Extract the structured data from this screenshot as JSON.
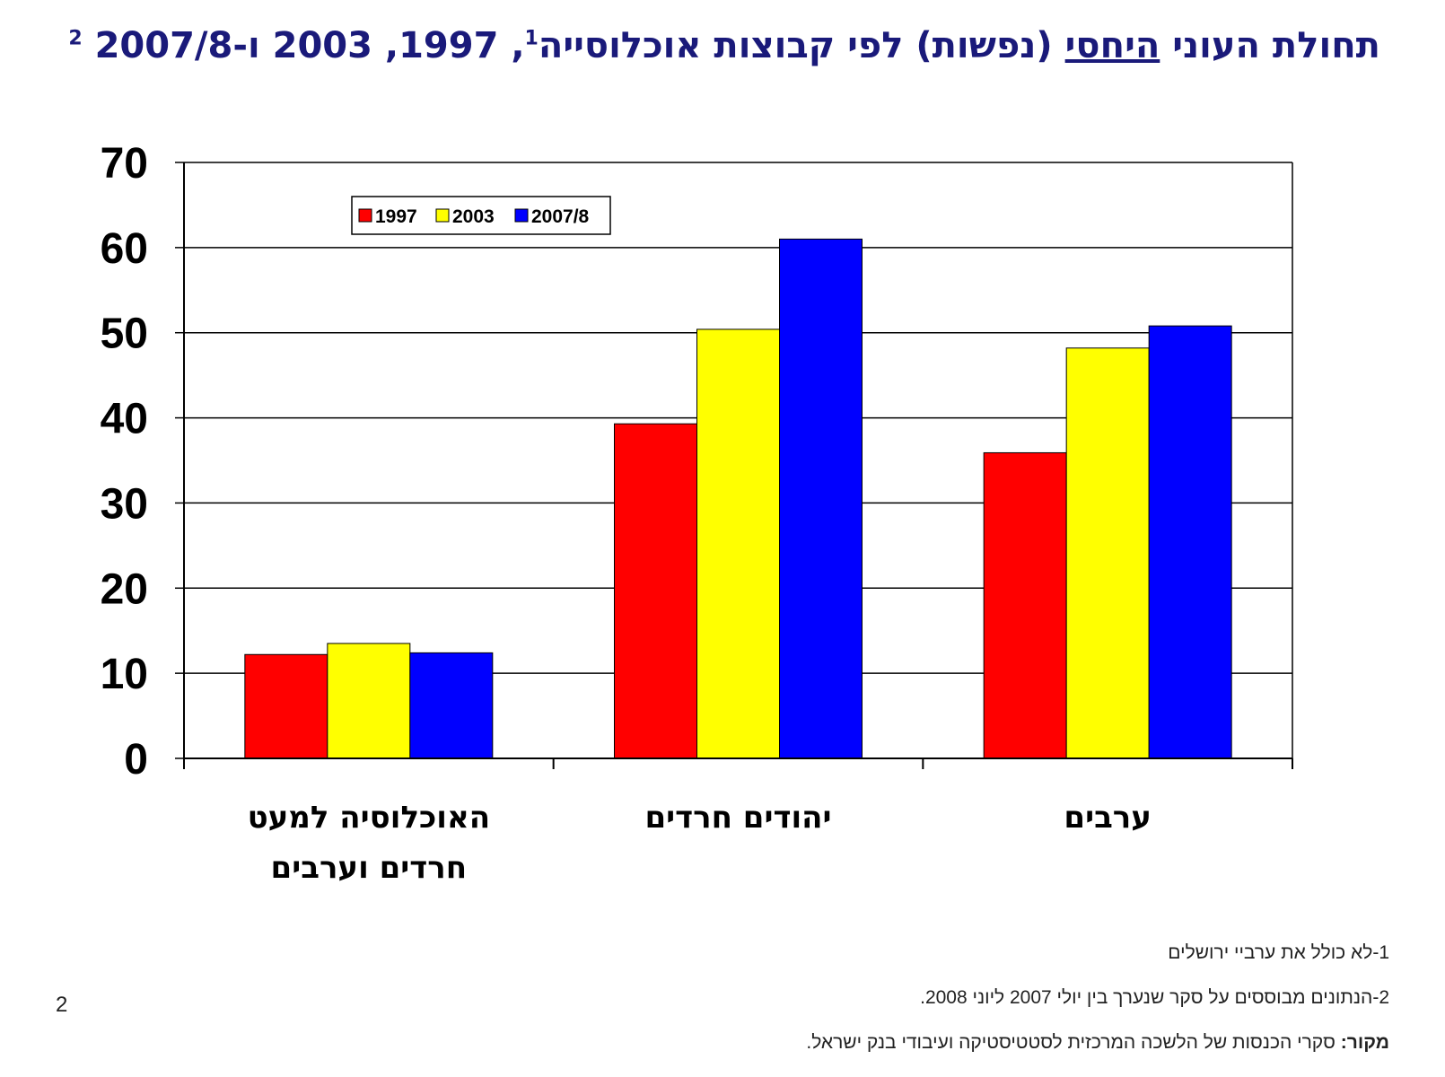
{
  "title": {
    "part1": "תחולת העוני ",
    "underlined": "היחסי",
    "part2": " (נפשות) לפי קבוצות אוכלוסייה",
    "sup1": "1",
    "part3": ", 1997, 2003 ו-2007/8 ",
    "sup2": "2"
  },
  "footnotes": {
    "note1": "1-לא כולל את ערביי ירושלים",
    "note2": "2-הנתונים מבוססים על סקר שנערך בין יולי 2007 ליוני 2008.",
    "source_label": "מקור:",
    "source_text": " סקרי הכנסות של הלשכה המרכזית לסטטיסטיקה ועיבודי בנק ישראל."
  },
  "page_number": "2",
  "chart_data": {
    "type": "bar",
    "title": "תחולת העוני היחסי (נפשות) לפי קבוצות אוכלוסייה, 1997, 2003 ו-2007/8",
    "xlabel": "",
    "ylabel": "",
    "ylim": [
      0,
      70
    ],
    "yticks": [
      0,
      10,
      20,
      30,
      40,
      50,
      60,
      70
    ],
    "grid": true,
    "legend_position": "top-left",
    "categories": [
      [
        "האוכלוסיה למעט",
        "חרדים וערבים"
      ],
      [
        "יהודים חרדים"
      ],
      [
        "ערבים"
      ]
    ],
    "series": [
      {
        "name": "1997",
        "color": "#ff0000",
        "values": [
          12.2,
          39.3,
          35.9
        ]
      },
      {
        "name": "2003",
        "color": "#ffff00",
        "values": [
          13.5,
          50.4,
          48.2
        ]
      },
      {
        "name": "2007/8",
        "color": "#0000ff",
        "values": [
          12.4,
          61.0,
          50.8
        ]
      }
    ]
  }
}
